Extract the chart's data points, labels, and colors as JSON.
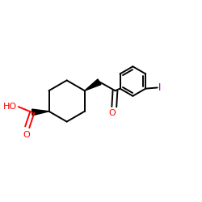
{
  "background": "#ffffff",
  "bond_color": "#000000",
  "o_color": "#ff0000",
  "i_color": "#800080",
  "lw": 1.4,
  "fig_size": [
    2.5,
    2.5
  ],
  "dpi": 100,
  "xlim": [
    0.0,
    1.0
  ],
  "ylim": [
    0.1,
    0.9
  ]
}
